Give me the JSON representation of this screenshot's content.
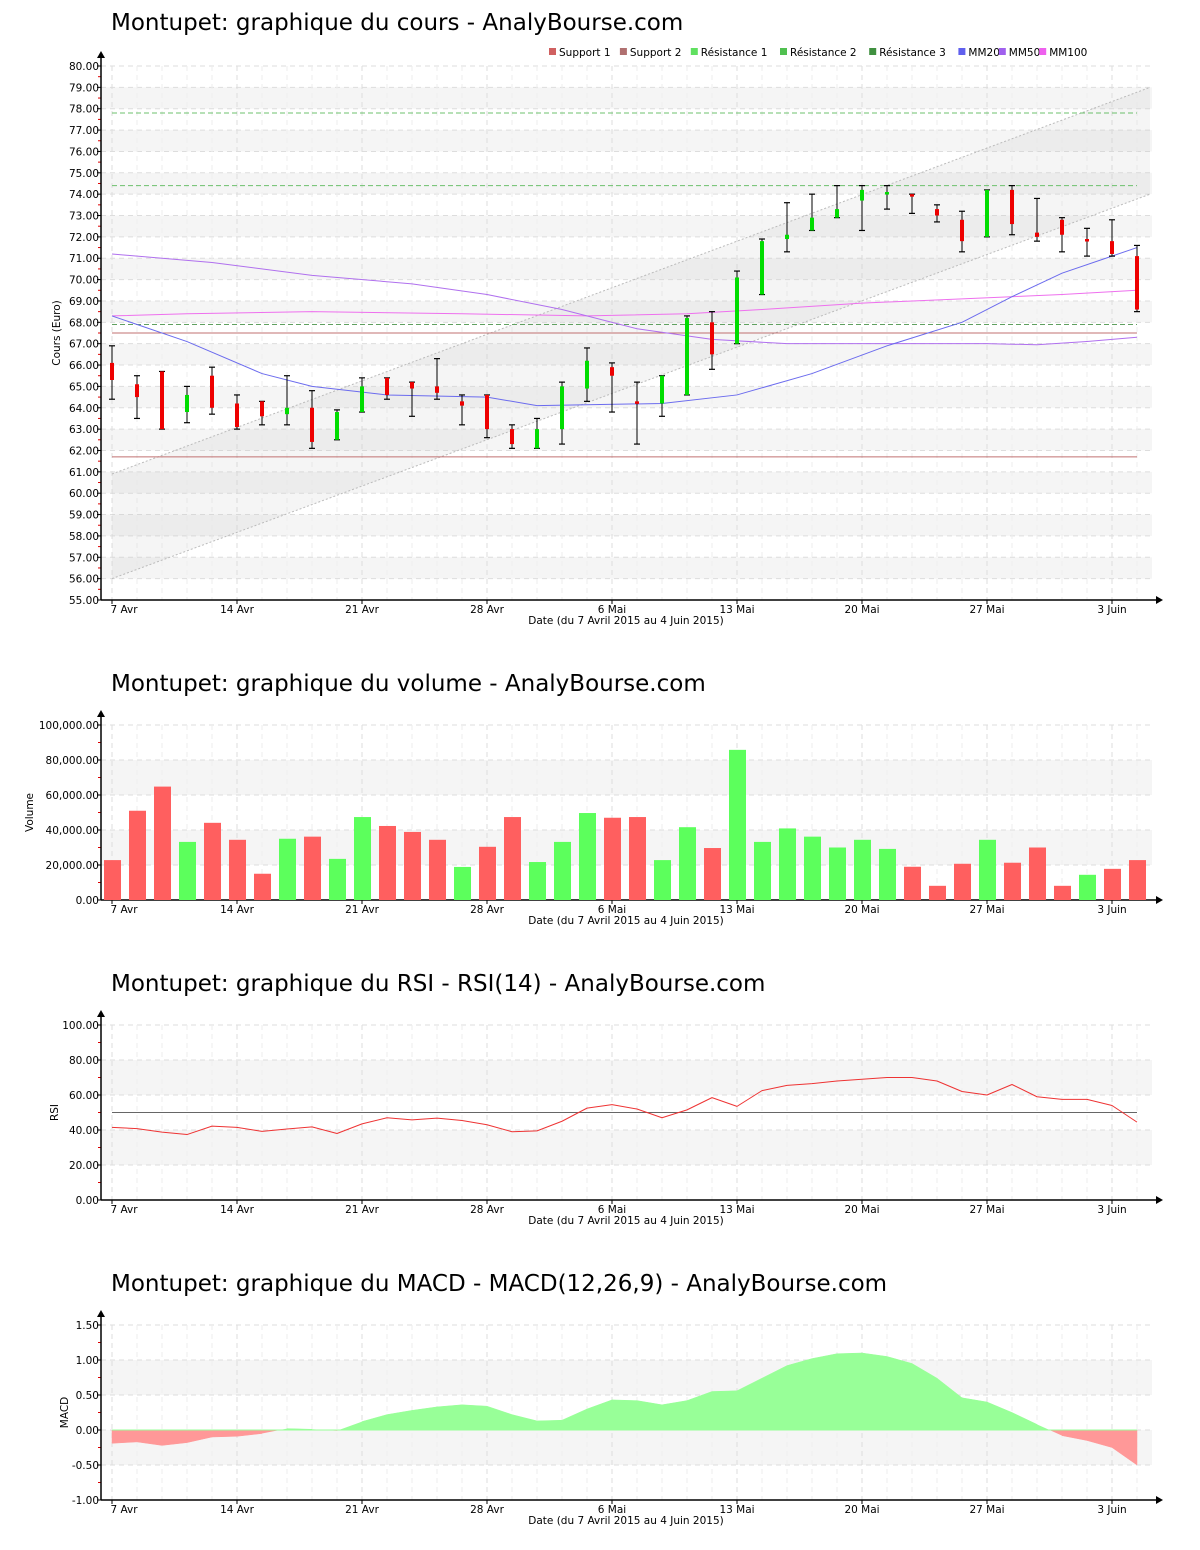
{
  "titles": {
    "price": "Montupet: graphique du cours - AnalyBourse.com",
    "volume": "Montupet: graphique du volume - AnalyBourse.com",
    "rsi": "Montupet: graphique du RSI - RSI(14) - AnalyBourse.com",
    "macd": "Montupet: graphique du MACD - MACD(12,26,9) - AnalyBourse.com"
  },
  "xlabel": "Date (du 7 Avril 2015 au 4 Juin 2015)",
  "x_ticks": [
    "7 Avr",
    "14 Avr",
    "21 Avr",
    "28 Avr",
    "6 Mai",
    "13 Mai",
    "20 Mai",
    "27 Mai",
    "3 Juin"
  ],
  "x_tick_index": [
    0,
    5,
    10,
    15,
    20,
    25,
    30,
    35,
    40
  ],
  "colors": {
    "up": "#00dd00",
    "down": "#ee0000",
    "vol_up": "#5cff5c",
    "vol_down": "#ff5f5f",
    "support": "#c07070",
    "resistance": "#6cc06c",
    "mm20": "#6b6bee",
    "mm50": "#b070ee",
    "mm100": "#ee70ee",
    "rsi": "#ee3333",
    "macd_pos": "#98ff98",
    "macd_neg": "#ff9898"
  },
  "legend": [
    {
      "label": "Support 1",
      "color": "#d06060"
    },
    {
      "label": "Support 2",
      "color": "#b07070"
    },
    {
      "label": "Résistance 1",
      "color": "#60e060"
    },
    {
      "label": "Résistance 2",
      "color": "#50c050"
    },
    {
      "label": "Résistance 3",
      "color": "#409040"
    },
    {
      "label": "MM20",
      "color": "#6060ee"
    },
    {
      "label": "MM50",
      "color": "#a060ee"
    },
    {
      "label": "MM100",
      "color": "#ee60ee"
    }
  ],
  "chart_data": [
    {
      "type": "candlestick",
      "title": "Montupet: graphique du cours - AnalyBourse.com",
      "xlabel": "Date (du 7 Avril 2015 au 4 Juin 2015)",
      "ylabel": "Cours (Euro)",
      "ylim": [
        55,
        80
      ],
      "y_ticks": [
        "55.00",
        "56.00",
        "57.00",
        "58.00",
        "59.00",
        "60.00",
        "61.00",
        "62.00",
        "63.00",
        "64.00",
        "65.00",
        "66.00",
        "67.00",
        "68.00",
        "69.00",
        "70.00",
        "71.00",
        "72.00",
        "73.00",
        "74.00",
        "75.00",
        "76.00",
        "77.00",
        "78.00",
        "79.00",
        "80.00"
      ],
      "candles": [
        {
          "o": 66.1,
          "c": 65.3,
          "h": 66.9,
          "l": 64.4
        },
        {
          "o": 65.1,
          "c": 64.5,
          "h": 65.5,
          "l": 63.5
        },
        {
          "o": 65.7,
          "c": 63.0,
          "h": 65.7,
          "l": 63.0
        },
        {
          "o": 63.8,
          "c": 64.6,
          "h": 65.0,
          "l": 63.3
        },
        {
          "o": 65.5,
          "c": 64.0,
          "h": 65.9,
          "l": 63.7
        },
        {
          "o": 64.2,
          "c": 63.1,
          "h": 64.6,
          "l": 63.0
        },
        {
          "o": 64.3,
          "c": 63.6,
          "h": 64.3,
          "l": 63.2
        },
        {
          "o": 63.7,
          "c": 64.0,
          "h": 65.5,
          "l": 63.2
        },
        {
          "o": 64.0,
          "c": 62.4,
          "h": 64.8,
          "l": 62.1
        },
        {
          "o": 62.5,
          "c": 63.8,
          "h": 63.9,
          "l": 62.5
        },
        {
          "o": 63.8,
          "c": 65.0,
          "h": 65.4,
          "l": 63.8
        },
        {
          "o": 65.4,
          "c": 64.6,
          "h": 65.4,
          "l": 64.4
        },
        {
          "o": 65.2,
          "c": 64.9,
          "h": 65.2,
          "l": 63.6
        },
        {
          "o": 65.0,
          "c": 64.7,
          "h": 66.3,
          "l": 64.4
        },
        {
          "o": 64.3,
          "c": 64.1,
          "h": 64.6,
          "l": 63.2
        },
        {
          "o": 64.6,
          "c": 63.0,
          "h": 64.6,
          "l": 62.6
        },
        {
          "o": 63.0,
          "c": 62.3,
          "h": 63.2,
          "l": 62.1
        },
        {
          "o": 62.1,
          "c": 63.0,
          "h": 63.5,
          "l": 62.1
        },
        {
          "o": 63.0,
          "c": 65.0,
          "h": 65.2,
          "l": 62.3
        },
        {
          "o": 64.9,
          "c": 66.2,
          "h": 66.8,
          "l": 64.3
        },
        {
          "o": 65.9,
          "c": 65.5,
          "h": 66.1,
          "l": 63.8
        },
        {
          "o": 64.3,
          "c": 64.2,
          "h": 65.2,
          "l": 62.3
        },
        {
          "o": 64.2,
          "c": 65.5,
          "h": 65.5,
          "l": 63.6
        },
        {
          "o": 64.6,
          "c": 68.2,
          "h": 68.3,
          "l": 64.6
        },
        {
          "o": 68.0,
          "c": 66.5,
          "h": 68.5,
          "l": 65.8
        },
        {
          "o": 67.0,
          "c": 70.1,
          "h": 70.4,
          "l": 67.0
        },
        {
          "o": 69.3,
          "c": 71.8,
          "h": 71.9,
          "l": 69.3
        },
        {
          "o": 71.9,
          "c": 72.1,
          "h": 73.6,
          "l": 71.3
        },
        {
          "o": 72.3,
          "c": 72.9,
          "h": 74.0,
          "l": 72.3
        },
        {
          "o": 72.9,
          "c": 73.3,
          "h": 74.4,
          "l": 72.9
        },
        {
          "o": 73.7,
          "c": 74.2,
          "h": 74.4,
          "l": 72.3
        },
        {
          "o": 74.0,
          "c": 74.1,
          "h": 74.4,
          "l": 73.3
        },
        {
          "o": 74.0,
          "c": 73.9,
          "h": 74.0,
          "l": 73.1
        },
        {
          "o": 73.3,
          "c": 73.0,
          "h": 73.5,
          "l": 72.7
        },
        {
          "o": 72.8,
          "c": 71.8,
          "h": 73.2,
          "l": 71.3
        },
        {
          "o": 72.0,
          "c": 74.2,
          "h": 74.2,
          "l": 72.0
        },
        {
          "o": 74.2,
          "c": 72.6,
          "h": 74.4,
          "l": 72.1
        },
        {
          "o": 72.2,
          "c": 72.0,
          "h": 73.8,
          "l": 71.8
        },
        {
          "o": 72.8,
          "c": 72.1,
          "h": 72.9,
          "l": 71.3
        },
        {
          "o": 71.9,
          "c": 71.8,
          "h": 72.4,
          "l": 71.1
        },
        {
          "o": 71.8,
          "c": 71.2,
          "h": 72.8,
          "l": 71.1
        },
        {
          "o": 71.1,
          "c": 68.6,
          "h": 71.6,
          "l": 68.5
        }
      ],
      "support_1": 61.7,
      "support_2": 67.5,
      "resistance_1": 67.9,
      "resistance_2": 74.4,
      "resistance_3": 77.8,
      "mm20": [
        [
          0,
          68.3
        ],
        [
          3,
          67.1
        ],
        [
          6,
          65.6
        ],
        [
          8,
          65.0
        ],
        [
          11,
          64.6
        ],
        [
          15,
          64.5
        ],
        [
          17,
          64.1
        ],
        [
          22,
          64.2
        ],
        [
          25,
          64.6
        ],
        [
          28,
          65.6
        ],
        [
          31,
          66.9
        ],
        [
          34,
          68.0
        ],
        [
          36,
          69.2
        ],
        [
          38,
          70.3
        ],
        [
          40,
          71.1
        ],
        [
          41,
          71.5
        ]
      ],
      "mm50": [
        [
          0,
          71.2
        ],
        [
          4,
          70.8
        ],
        [
          8,
          70.2
        ],
        [
          12,
          69.8
        ],
        [
          15,
          69.3
        ],
        [
          18,
          68.6
        ],
        [
          21,
          67.7
        ],
        [
          24,
          67.2
        ],
        [
          27,
          67.0
        ],
        [
          31,
          67.0
        ],
        [
          35,
          67.0
        ],
        [
          37,
          66.95
        ],
        [
          39,
          67.1
        ],
        [
          41,
          67.3
        ]
      ],
      "mm100": [
        [
          0,
          68.3
        ],
        [
          3,
          68.4
        ],
        [
          8,
          68.5
        ],
        [
          14,
          68.4
        ],
        [
          19,
          68.3
        ],
        [
          23,
          68.4
        ],
        [
          26,
          68.6
        ],
        [
          30,
          68.9
        ],
        [
          34,
          69.1
        ],
        [
          38,
          69.3
        ],
        [
          41,
          69.5
        ]
      ],
      "channel_upper": [
        [
          0,
          60.9
        ],
        [
          41,
          79.0
        ]
      ],
      "channel_lower": [
        [
          0,
          56.0
        ],
        [
          41,
          74.0
        ]
      ]
    },
    {
      "type": "bar",
      "title": "Montupet: graphique du volume - AnalyBourse.com",
      "xlabel": "Date (du 7 Avril 2015 au 4 Juin 2015)",
      "ylabel": "Volume",
      "ylim": [
        0,
        100000
      ],
      "y_ticks": [
        "0.00",
        "20,000.00",
        "40,000.00",
        "60,000.00",
        "80,000.00",
        "100,000.00"
      ],
      "values": [
        22800,
        51000,
        64800,
        33200,
        44100,
        34400,
        15000,
        35000,
        36200,
        23500,
        47400,
        42300,
        38900,
        34400,
        18900,
        30400,
        47400,
        21700,
        33200,
        49700,
        47000,
        47400,
        22800,
        41600,
        29700,
        85800,
        33200,
        40900,
        36200,
        30000,
        34400,
        29200,
        19000,
        8100,
        20700,
        34400,
        21300,
        30000,
        8100,
        14400,
        17800,
        22800
      ],
      "up": [
        false,
        false,
        false,
        true,
        false,
        false,
        false,
        true,
        false,
        true,
        true,
        false,
        false,
        false,
        true,
        false,
        false,
        true,
        true,
        true,
        false,
        false,
        true,
        true,
        false,
        true,
        true,
        true,
        true,
        true,
        true,
        true,
        false,
        false,
        false,
        true,
        false,
        false,
        false,
        true,
        false,
        false
      ]
    },
    {
      "type": "line",
      "title": "Montupet: graphique du RSI - RSI(14) - AnalyBourse.com",
      "xlabel": "Date (du 7 Avril 2015 au 4 Juin 2015)",
      "ylabel": "RSI",
      "ylim": [
        0,
        100
      ],
      "y_ticks": [
        "0.00",
        "20.00",
        "40.00",
        "60.00",
        "80.00",
        "100.00"
      ],
      "reference_line": 50,
      "values": [
        41.5,
        40.8,
        38.8,
        37.4,
        42.2,
        41.5,
        39.2,
        40.6,
        41.8,
        38.0,
        43.5,
        47.0,
        45.8,
        46.8,
        45.4,
        43.0,
        39.0,
        39.5,
        45.0,
        52.5,
        54.5,
        52.0,
        47.0,
        51.5,
        58.5,
        53.5,
        62.5,
        65.5,
        66.5,
        68.0,
        69.0,
        70.0,
        70.0,
        68.0,
        62.0,
        60.0,
        66.0,
        59.0,
        57.5,
        57.5,
        54.0,
        44.5
      ]
    },
    {
      "type": "area",
      "title": "Montupet: graphique du MACD - MACD(12,26,9) - AnalyBourse.com",
      "xlabel": "Date (du 7 Avril 2015 au 4 Juin 2015)",
      "ylabel": "MACD",
      "ylim": [
        -1,
        1.5
      ],
      "y_ticks": [
        "-1.00",
        "-0.50",
        "0.00",
        "0.50",
        "1.00",
        "1.50"
      ],
      "values": [
        -0.19,
        -0.17,
        -0.22,
        -0.18,
        -0.1,
        -0.09,
        -0.05,
        0.02,
        0.01,
        -0.01,
        0.12,
        0.22,
        0.28,
        0.33,
        0.36,
        0.34,
        0.22,
        0.13,
        0.14,
        0.3,
        0.43,
        0.42,
        0.36,
        0.42,
        0.55,
        0.56,
        0.74,
        0.92,
        1.02,
        1.09,
        1.1,
        1.05,
        0.95,
        0.74,
        0.46,
        0.4,
        0.25,
        0.08,
        -0.08,
        -0.15,
        -0.25,
        -0.5
      ]
    }
  ]
}
